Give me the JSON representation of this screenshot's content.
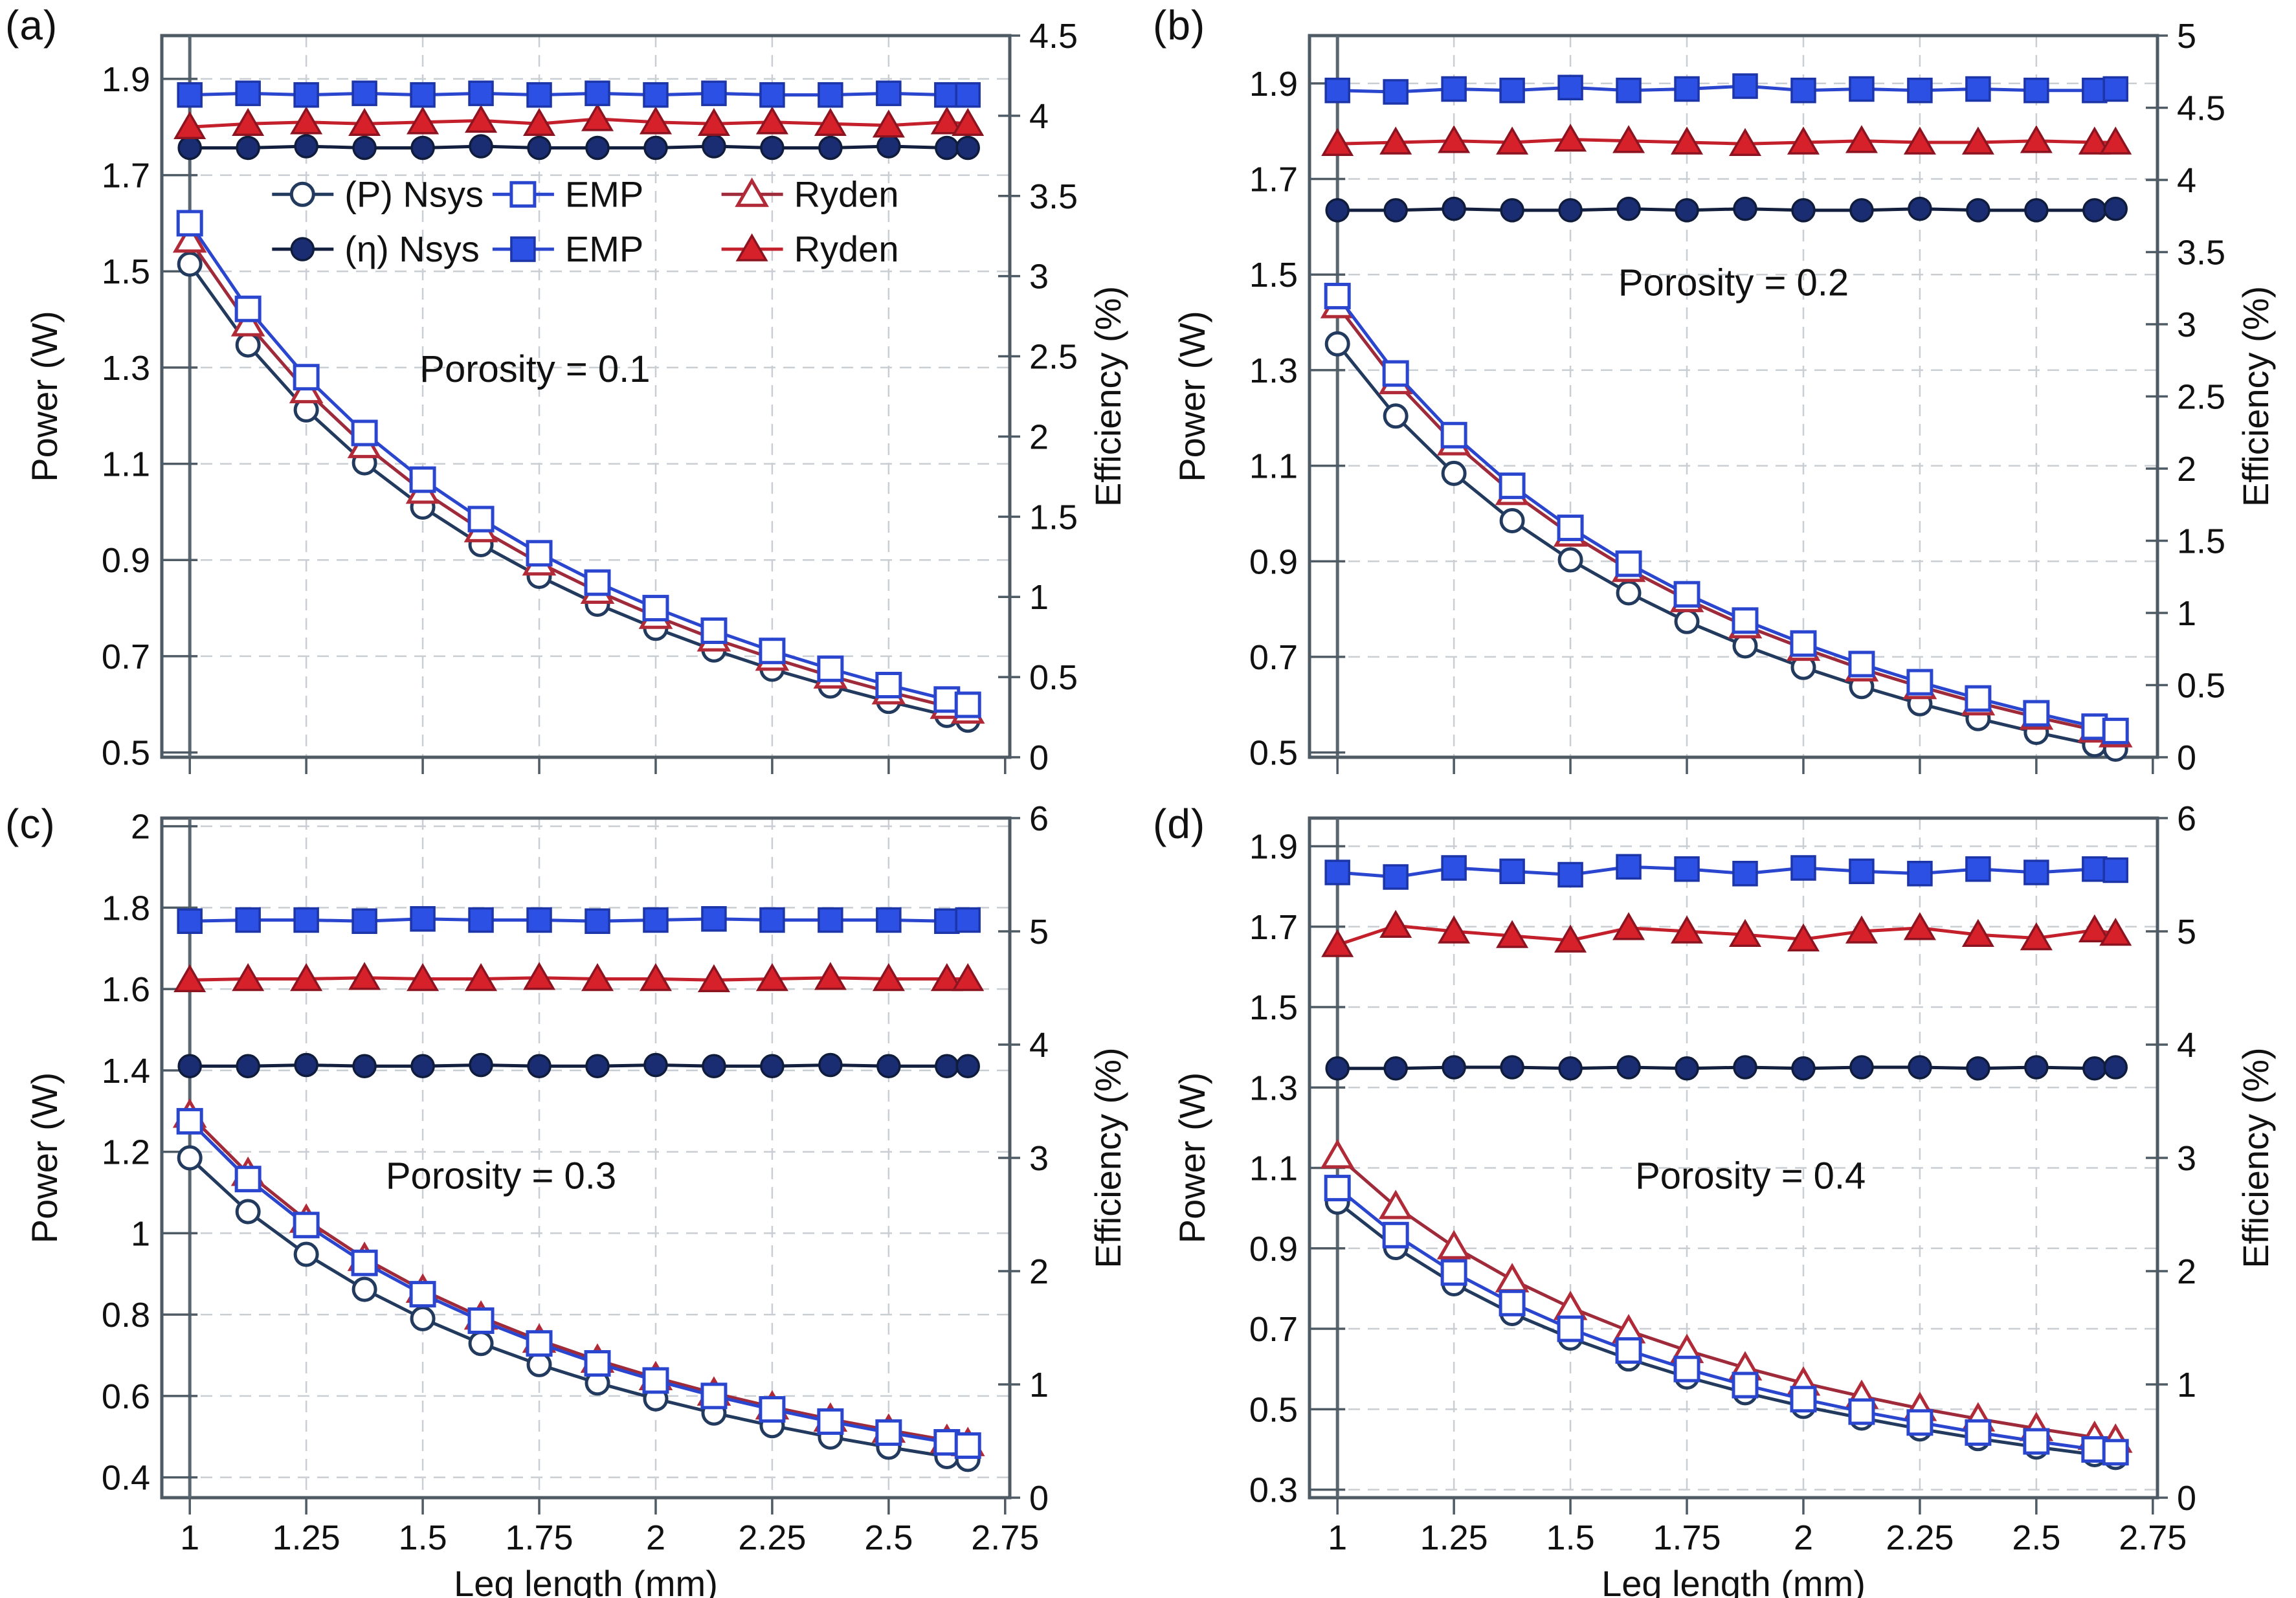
{
  "chart_data": {
    "type": "line",
    "xlabel": "Leg length (mm)",
    "ylabel_left": "Power (W)",
    "ylabel_right": "Efficiency (%)",
    "x": [
      1,
      1.125,
      1.25,
      1.375,
      1.5,
      1.625,
      1.75,
      1.875,
      2,
      2.125,
      2.25,
      2.375,
      2.5,
      2.625,
      2.67
    ],
    "x_ticks": {
      "values": [
        1,
        1.25,
        1.5,
        1.75,
        2,
        2.25,
        2.5,
        2.75
      ],
      "labels": [
        "1",
        "1.25",
        "1.5",
        "1.75",
        "2",
        "2.25",
        "2.5",
        "2.75"
      ]
    },
    "x_gridlines": [
      1.25,
      1.5,
      1.75,
      2,
      2.25,
      2.5
    ],
    "x_range": [
      0.94,
      2.76
    ],
    "grid_on": true,
    "colors": {
      "navy": "#1a2c72",
      "blue": "#2a46cf",
      "blue_fill": "#2c4fe4",
      "red": "#d6202a",
      "dark_red": "#8c1420",
      "border": "#4e5a64",
      "grid": "#c9ced3"
    },
    "series_styles": {
      "nsys_p": {
        "line": "#233a5f",
        "stroke": "#233a5f",
        "fill": "#ffffff",
        "shape": "circle"
      },
      "emp_p": {
        "line": "#2a46cf",
        "stroke": "#2a46cf",
        "fill": "#ffffff",
        "shape": "square"
      },
      "ryden_p": {
        "line": "#9e2a3a",
        "stroke": "#b02a38",
        "fill": "#ffffff",
        "shape": "triangle"
      },
      "nsys_e": {
        "line": "#131f3e",
        "stroke": "#0f1c3c",
        "fill": "#1a2c72",
        "shape": "circle"
      },
      "emp_e": {
        "line": "#2a46cf",
        "stroke": "#1c35a8",
        "fill": "#2c4fe4",
        "shape": "square"
      },
      "ryden_e": {
        "line": "#c3202c",
        "stroke": "#8c1420",
        "fill": "#d6202a",
        "shape": "triangle"
      }
    },
    "legend": {
      "rows": [
        [
          {
            "label": "(P) Nsys",
            "style": "nsys_p"
          },
          {
            "label": "EMP",
            "style": "emp_p"
          },
          {
            "label": "Ryden",
            "style": "ryden_p"
          }
        ],
        [
          {
            "label": "(η) Nsys",
            "style": "nsys_e"
          },
          {
            "label": "EMP",
            "style": "emp_e"
          },
          {
            "label": "Ryden",
            "style": "ryden_e"
          }
        ]
      ],
      "fx": [
        0.13,
        0.39,
        0.66
      ],
      "fy": [
        0.22,
        0.296
      ],
      "position": "inside-top"
    },
    "panels": [
      {
        "label": "(a)",
        "annotation": "Porosity = 0.1",
        "ann_fx": 0.44,
        "ann_fy": 0.48,
        "show_legend": true,
        "show_x_labels": false,
        "left_axis": {
          "label": "Power (W)",
          "min": 0.49,
          "max": 1.99,
          "ticks": [
            1.9,
            1.7,
            1.5,
            1.3,
            1.1,
            0.9,
            0.7,
            0.5
          ],
          "tick_labels": [
            "1.9",
            "1.7",
            "1.5",
            "1.3",
            "1.1",
            "0.9",
            "0.7",
            "0.5"
          ]
        },
        "right_axis": {
          "label": "Efficiency (%)",
          "min": 0,
          "max": 4.5,
          "ticks": [
            4.5,
            4,
            3.5,
            3,
            2.5,
            2,
            1.5,
            1,
            0.5,
            0
          ],
          "tick_labels": [
            "4.5",
            "4",
            "3.5",
            "3",
            "2.5",
            "2",
            "1.5",
            "1",
            "0.5",
            "0"
          ]
        },
        "power_series": [
          {
            "name": "(P) Nsys",
            "style": "nsys_p",
            "values": [
              1.515,
              1.347,
              1.212,
              1.102,
              1.01,
              0.932,
              0.866,
              0.808,
              0.758,
              0.713,
              0.673,
              0.638,
              0.606,
              0.577,
              0.567
            ]
          },
          {
            "name": "Ryden",
            "style": "ryden_p",
            "values": [
              1.565,
              1.391,
              1.252,
              1.138,
              1.043,
              0.963,
              0.894,
              0.835,
              0.783,
              0.736,
              0.696,
              0.659,
              0.626,
              0.596,
              0.586
            ]
          },
          {
            "name": "EMP",
            "style": "emp_p",
            "values": [
              1.6,
              1.422,
              1.28,
              1.164,
              1.067,
              0.985,
              0.914,
              0.853,
              0.8,
              0.753,
              0.711,
              0.674,
              0.64,
              0.61,
              0.599
            ]
          }
        ],
        "efficiency_series": [
          {
            "name": "(η) Nsys",
            "style": "nsys_e",
            "values": [
              3.8,
              3.8,
              3.81,
              3.8,
              3.8,
              3.81,
              3.8,
              3.8,
              3.8,
              3.81,
              3.8,
              3.8,
              3.81,
              3.8,
              3.8
            ]
          },
          {
            "name": "Ryden",
            "style": "ryden_e",
            "values": [
              3.93,
              3.95,
              3.96,
              3.95,
              3.96,
              3.97,
              3.95,
              3.98,
              3.96,
              3.95,
              3.96,
              3.95,
              3.94,
              3.96,
              3.95
            ]
          },
          {
            "name": "EMP",
            "style": "emp_e",
            "values": [
              4.13,
              4.14,
              4.13,
              4.14,
              4.13,
              4.14,
              4.13,
              4.14,
              4.13,
              4.14,
              4.13,
              4.13,
              4.14,
              4.13,
              4.13
            ]
          }
        ]
      },
      {
        "label": "(b)",
        "annotation": "Porosity = 0.2",
        "ann_fx": 0.5,
        "ann_fy": 0.36,
        "show_legend": false,
        "show_x_labels": false,
        "left_axis": {
          "label": "Power (W)",
          "min": 0.49,
          "max": 2.0,
          "ticks": [
            1.9,
            1.7,
            1.5,
            1.3,
            1.1,
            0.9,
            0.7,
            0.5
          ],
          "tick_labels": [
            "1.9",
            "1.7",
            "1.5",
            "1.3",
            "1.1",
            "0.9",
            "0.7",
            "0.5"
          ]
        },
        "right_axis": {
          "label": "Efficiency (%)",
          "min": 0,
          "max": 5,
          "ticks": [
            5,
            4.5,
            4,
            3.5,
            3,
            2.5,
            2,
            1.5,
            1,
            0.5,
            0
          ],
          "tick_labels": [
            "5",
            "4.5",
            "4",
            "3.5",
            "3",
            "2.5",
            "2",
            "1.5",
            "1",
            "0.5",
            "0"
          ]
        },
        "power_series": [
          {
            "name": "(P) Nsys",
            "style": "nsys_p",
            "values": [
              1.355,
              1.204,
              1.084,
              0.985,
              0.903,
              0.834,
              0.774,
              0.723,
              0.678,
              0.638,
              0.602,
              0.571,
              0.542,
              0.516,
              0.507
            ]
          },
          {
            "name": "Ryden",
            "style": "ryden_p",
            "values": [
              1.435,
              1.276,
              1.148,
              1.044,
              0.957,
              0.883,
              0.82,
              0.765,
              0.718,
              0.675,
              0.638,
              0.604,
              0.574,
              0.547,
              0.537
            ]
          },
          {
            "name": "EMP",
            "style": "emp_p",
            "values": [
              1.455,
              1.293,
              1.164,
              1.058,
              0.97,
              0.895,
              0.831,
              0.776,
              0.728,
              0.685,
              0.647,
              0.613,
              0.582,
              0.554,
              0.545
            ]
          }
        ],
        "efficiency_series": [
          {
            "name": "(η) Nsys",
            "style": "nsys_e",
            "values": [
              3.79,
              3.79,
              3.8,
              3.79,
              3.79,
              3.8,
              3.79,
              3.8,
              3.79,
              3.79,
              3.8,
              3.79,
              3.79,
              3.79,
              3.8
            ]
          },
          {
            "name": "Ryden",
            "style": "ryden_e",
            "values": [
              4.25,
              4.26,
              4.27,
              4.26,
              4.28,
              4.27,
              4.26,
              4.25,
              4.26,
              4.27,
              4.26,
              4.26,
              4.27,
              4.26,
              4.26
            ]
          },
          {
            "name": "EMP",
            "style": "emp_e",
            "values": [
              4.62,
              4.61,
              4.63,
              4.62,
              4.64,
              4.62,
              4.63,
              4.65,
              4.62,
              4.63,
              4.62,
              4.63,
              4.62,
              4.62,
              4.63
            ]
          }
        ]
      },
      {
        "label": "(c)",
        "annotation": "Porosity = 0.3",
        "ann_fx": 0.4,
        "ann_fy": 0.545,
        "show_legend": false,
        "show_x_labels": true,
        "left_axis": {
          "label": "Power (W)",
          "min": 0.35,
          "max": 2.02,
          "ticks": [
            2,
            1.8,
            1.6,
            1.4,
            1.2,
            1,
            0.8,
            0.6,
            0.4
          ],
          "tick_labels": [
            "2",
            "1.8",
            "1.6",
            "1.4",
            "1.2",
            "1",
            "0.8",
            "0.6",
            "0.4"
          ]
        },
        "right_axis": {
          "label": "Efficiency (%)",
          "min": 0,
          "max": 6,
          "ticks": [
            6,
            5,
            4,
            3,
            2,
            1,
            0
          ],
          "tick_labels": [
            "6",
            "5",
            "4",
            "3",
            "2",
            "1",
            "0"
          ]
        },
        "power_series": [
          {
            "name": "(P) Nsys",
            "style": "nsys_p",
            "values": [
              1.185,
              1.053,
              0.948,
              0.862,
              0.79,
              0.729,
              0.677,
              0.632,
              0.593,
              0.558,
              0.527,
              0.499,
              0.474,
              0.451,
              0.444
            ]
          },
          {
            "name": "Ryden",
            "style": "ryden_p",
            "values": [
              1.29,
              1.147,
              1.032,
              0.938,
              0.86,
              0.794,
              0.737,
              0.688,
              0.645,
              0.607,
              0.573,
              0.543,
              0.516,
              0.491,
              0.483
            ]
          },
          {
            "name": "EMP",
            "style": "emp_p",
            "values": [
              1.275,
              1.133,
              1.02,
              0.927,
              0.85,
              0.785,
              0.729,
              0.68,
              0.638,
              0.6,
              0.567,
              0.537,
              0.51,
              0.486,
              0.478
            ]
          }
        ],
        "efficiency_series": [
          {
            "name": "(η) Nsys",
            "style": "nsys_e",
            "values": [
              3.81,
              3.81,
              3.82,
              3.81,
              3.81,
              3.82,
              3.81,
              3.81,
              3.82,
              3.81,
              3.81,
              3.82,
              3.81,
              3.81,
              3.81
            ]
          },
          {
            "name": "Ryden",
            "style": "ryden_e",
            "values": [
              4.57,
              4.58,
              4.58,
              4.59,
              4.58,
              4.58,
              4.59,
              4.58,
              4.58,
              4.57,
              4.58,
              4.59,
              4.58,
              4.58,
              4.58
            ]
          },
          {
            "name": "EMP",
            "style": "emp_e",
            "values": [
              5.09,
              5.1,
              5.1,
              5.09,
              5.11,
              5.1,
              5.1,
              5.09,
              5.1,
              5.11,
              5.1,
              5.1,
              5.1,
              5.09,
              5.1
            ]
          }
        ]
      },
      {
        "label": "(d)",
        "annotation": "Porosity = 0.4",
        "ann_fx": 0.52,
        "ann_fy": 0.545,
        "show_legend": false,
        "show_x_labels": true,
        "left_axis": {
          "label": "Power (W)",
          "min": 0.28,
          "max": 1.97,
          "ticks": [
            1.9,
            1.7,
            1.5,
            1.3,
            1.1,
            0.9,
            0.7,
            0.5,
            0.3
          ],
          "tick_labels": [
            "1.9",
            "1.7",
            "1.5",
            "1.3",
            "1.1",
            "0.9",
            "0.7",
            "0.5",
            "0.3"
          ]
        },
        "right_axis": {
          "label": "Efficiency (%)",
          "min": 0,
          "max": 6,
          "ticks": [
            6,
            5,
            4,
            3,
            2,
            1,
            0
          ],
          "tick_labels": [
            "6",
            "5",
            "4",
            "3",
            "2",
            "1",
            "0"
          ]
        },
        "power_series": [
          {
            "name": "(P) Nsys",
            "style": "nsys_p",
            "values": [
              1.015,
              0.902,
              0.812,
              0.738,
              0.677,
              0.625,
              0.58,
              0.541,
              0.507,
              0.478,
              0.451,
              0.427,
              0.406,
              0.387,
              0.38
            ]
          },
          {
            "name": "Ryden",
            "style": "ryden_p",
            "values": [
              1.13,
              1.004,
              0.904,
              0.822,
              0.753,
              0.695,
              0.646,
              0.603,
              0.565,
              0.532,
              0.502,
              0.476,
              0.452,
              0.43,
              0.423
            ]
          },
          {
            "name": "EMP",
            "style": "emp_p",
            "values": [
              1.05,
              0.933,
              0.84,
              0.764,
              0.7,
              0.646,
              0.6,
              0.56,
              0.525,
              0.494,
              0.467,
              0.442,
              0.42,
              0.4,
              0.393
            ]
          }
        ],
        "efficiency_series": [
          {
            "name": "(η) Nsys",
            "style": "nsys_e",
            "values": [
              3.79,
              3.79,
              3.8,
              3.8,
              3.79,
              3.8,
              3.79,
              3.8,
              3.79,
              3.8,
              3.8,
              3.79,
              3.8,
              3.79,
              3.8
            ]
          },
          {
            "name": "Ryden",
            "style": "ryden_e",
            "values": [
              4.88,
              5.05,
              5.0,
              4.96,
              4.92,
              5.03,
              5.0,
              4.97,
              4.93,
              5.0,
              5.03,
              4.97,
              4.94,
              5.01,
              4.98
            ]
          },
          {
            "name": "EMP",
            "style": "emp_e",
            "values": [
              5.52,
              5.48,
              5.56,
              5.53,
              5.5,
              5.57,
              5.55,
              5.51,
              5.56,
              5.53,
              5.51,
              5.55,
              5.52,
              5.55,
              5.54
            ]
          }
        ]
      }
    ]
  }
}
